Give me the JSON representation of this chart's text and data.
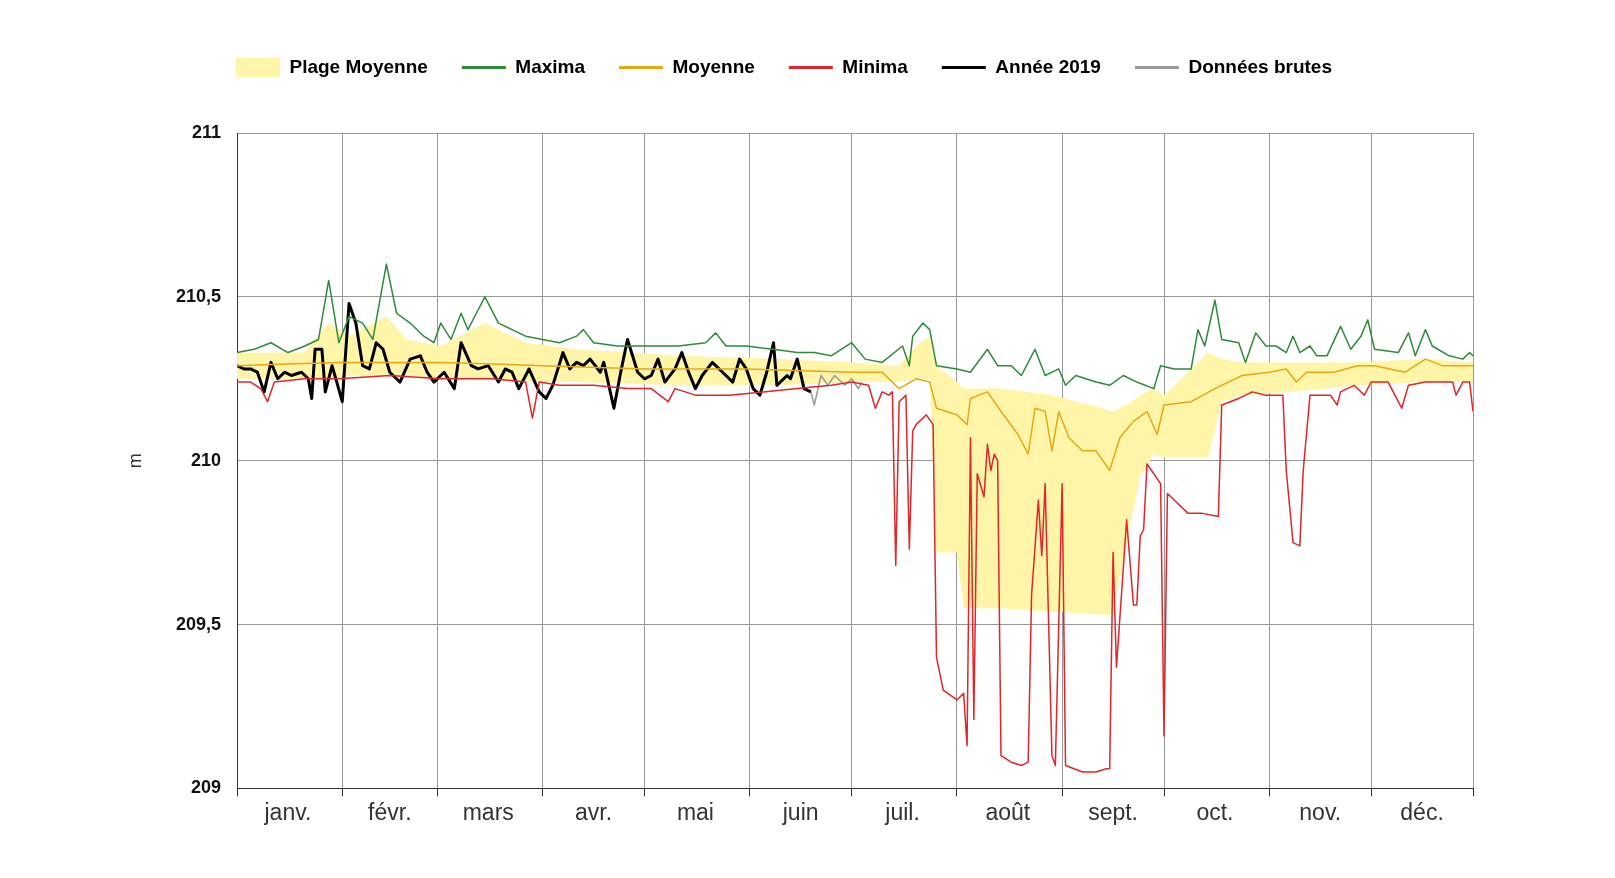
{
  "chart_data": {
    "type": "line",
    "ylabel": "m",
    "xlim": [
      "--01-01",
      "--12-31"
    ],
    "xticks": [
      {
        "value": "--01-01",
        "label": null
      },
      {
        "value": "--01-16",
        "label": "janv."
      },
      {
        "value": "--02-01",
        "label": null
      },
      {
        "value": "--02-15",
        "label": "févr."
      },
      {
        "value": "--03-01",
        "label": null
      },
      {
        "value": "--03-16",
        "label": "mars"
      },
      {
        "value": "--04-01",
        "label": null
      },
      {
        "value": "--04-16",
        "label": "avr."
      },
      {
        "value": "--05-01",
        "label": null
      },
      {
        "value": "--05-16",
        "label": "mai"
      },
      {
        "value": "--06-01",
        "label": null
      },
      {
        "value": "--06-16",
        "label": "juin"
      },
      {
        "value": "--07-01",
        "label": null
      },
      {
        "value": "--07-16",
        "label": "juil."
      },
      {
        "value": "--08-01",
        "label": null
      },
      {
        "value": "--08-16",
        "label": "août"
      },
      {
        "value": "--09-01",
        "label": null
      },
      {
        "value": "--09-16",
        "label": "sept."
      },
      {
        "value": "--10-01",
        "label": null
      },
      {
        "value": "--10-16",
        "label": "oct."
      },
      {
        "value": "--11-01",
        "label": null
      },
      {
        "value": "--11-16",
        "label": "nov."
      },
      {
        "value": "--12-01",
        "label": null
      },
      {
        "value": "--12-16",
        "label": "déc."
      },
      {
        "value": "--12-31",
        "label": null
      }
    ],
    "ylim": [
      209,
      211
    ],
    "yticks": [
      209,
      {
        "value": 209.5,
        "label": "209,5"
      },
      210,
      {
        "value": 210.5,
        "label": "210,5"
      },
      211
    ],
    "grid": true,
    "legend": "top",
    "marker": "none",
    "line_style": "solid",
    "series": [
      {
        "name": "Plage Moyenne",
        "type": "line",
        "color": "#fff5a8",
        "values": [
          null,
          null,
          null,
          null,
          null,
          null,
          null,
          null,
          null,
          null,
          null,
          null,
          null,
          null,
          null,
          null,
          null,
          null,
          null,
          null,
          null,
          null,
          null,
          null,
          null,
          null,
          null,
          null,
          null,
          null,
          null,
          null,
          null,
          null,
          null
        ],
        "x": [
          "--01-01",
          "--01-21",
          "--01-28",
          "--02-03",
          "--02-14",
          "--02-20",
          "--03-02",
          "--03-15",
          "--03-27",
          "--04-11",
          "--05-11",
          "--06-10",
          "--07-01",
          "--07-15",
          "--07-20",
          "--07-24",
          "--07-26",
          "--08-01",
          "--08-03",
          "--08-14",
          "--08-29",
          "--09-13",
          "--09-16",
          "--09-20",
          "--09-24",
          "--09-28",
          "--10-01",
          "--10-09",
          "--10-14",
          "--10-18",
          "--10-24",
          "--11-07",
          "--11-27",
          "--12-17",
          "--12-31"
        ],
        "lower": [
          210.25,
          210.25,
          210.25,
          210.26,
          210.26,
          210.26,
          210.25,
          210.25,
          210.24,
          210.24,
          210.23,
          210.23,
          210.24,
          210.24,
          210.25,
          210.25,
          209.72,
          209.72,
          209.55,
          209.55,
          209.54,
          209.53,
          209.53,
          209.75,
          209.95,
          210.02,
          210.01,
          210.01,
          210.01,
          210.18,
          210.2,
          210.21,
          210.23,
          210.24,
          210.24
        ],
        "upper": [
          210.33,
          210.33,
          210.42,
          210.38,
          210.44,
          210.37,
          210.35,
          210.42,
          210.36,
          210.34,
          210.32,
          210.31,
          210.3,
          210.29,
          210.35,
          210.38,
          210.29,
          210.24,
          210.22,
          210.22,
          210.2,
          210.16,
          210.15,
          210.17,
          210.2,
          210.22,
          210.2,
          210.28,
          210.33,
          210.31,
          210.3,
          210.3,
          210.3,
          210.31,
          210.3
        ]
      },
      {
        "name": "Maxima",
        "color": "#2e8b3a",
        "x": [
          "--01-01",
          "--01-06",
          "--01-11",
          "--01-16",
          "--01-21",
          "--01-25",
          "--01-28",
          "--01-31",
          "--02-03",
          "--02-07",
          "--02-10",
          "--02-14",
          "--02-17",
          "--02-21",
          "--02-25",
          "--02-28",
          "--03-02",
          "--03-05",
          "--03-08",
          "--03-10",
          "--03-12",
          "--03-15",
          "--03-19",
          "--03-23",
          "--03-27",
          "--04-01",
          "--04-06",
          "--04-11",
          "--04-13",
          "--04-16",
          "--04-23",
          "--05-01",
          "--05-11",
          "--05-19",
          "--05-22",
          "--05-25",
          "--05-31",
          "--06-08",
          "--06-15",
          "--06-20",
          "--06-25",
          "--07-01",
          "--07-05",
          "--07-10",
          "--07-16",
          "--07-18",
          "--07-19",
          "--07-22",
          "--07-24",
          "--07-26",
          "--08-01",
          "--08-05",
          "--08-10",
          "--08-13",
          "--08-17",
          "--08-20",
          "--08-24",
          "--08-27",
          "--08-31",
          "--09-02",
          "--09-05",
          "--09-11",
          "--09-15",
          "--09-19",
          "--09-23",
          "--09-28",
          "--09-30",
          "--10-04",
          "--10-09",
          "--10-11",
          "--10-13",
          "--10-16",
          "--10-18",
          "--10-23",
          "--10-25",
          "--10-28",
          "--10-31",
          "--11-03",
          "--11-06",
          "--11-08",
          "--11-10",
          "--11-13",
          "--11-15",
          "--11-18",
          "--11-22",
          "--11-25",
          "--11-28",
          "--11-30",
          "--12-02",
          "--12-09",
          "--12-12",
          "--12-14",
          "--12-17",
          "--12-19",
          "--12-24",
          "--12-28",
          "--12-30",
          "--12-31"
        ],
        "values": [
          210.33,
          210.34,
          210.36,
          210.33,
          210.35,
          210.37,
          210.55,
          210.36,
          210.44,
          210.42,
          210.37,
          210.6,
          210.45,
          210.42,
          210.38,
          210.36,
          210.42,
          210.37,
          210.45,
          210.4,
          210.44,
          210.5,
          210.42,
          210.4,
          210.38,
          210.37,
          210.36,
          210.38,
          210.4,
          210.36,
          210.35,
          210.35,
          210.35,
          210.36,
          210.39,
          210.35,
          210.35,
          210.34,
          210.33,
          210.33,
          210.32,
          210.36,
          210.31,
          210.3,
          210.35,
          210.29,
          210.38,
          210.42,
          210.4,
          210.29,
          210.28,
          210.27,
          210.34,
          210.29,
          210.29,
          210.26,
          210.34,
          210.26,
          210.28,
          210.23,
          210.26,
          210.24,
          210.23,
          210.26,
          210.24,
          210.22,
          210.29,
          210.28,
          210.28,
          210.4,
          210.35,
          210.49,
          210.37,
          210.36,
          210.3,
          210.39,
          210.35,
          210.35,
          210.33,
          210.38,
          210.33,
          210.35,
          210.32,
          210.32,
          210.41,
          210.34,
          210.38,
          210.43,
          210.34,
          210.33,
          210.39,
          210.32,
          210.4,
          210.35,
          210.32,
          210.31,
          210.33,
          210.32
        ]
      },
      {
        "name": "Moyenne",
        "color": "#e6a817",
        "x": [
          "--01-01",
          "--01-31",
          "--03-02",
          "--04-01",
          "--05-01",
          "--05-31",
          "--07-01",
          "--07-10",
          "--07-15",
          "--07-20",
          "--07-24",
          "--07-26",
          "--08-01",
          "--08-04",
          "--08-05",
          "--08-10",
          "--08-14",
          "--08-19",
          "--08-22",
          "--08-24",
          "--08-27",
          "--08-29",
          "--08-31",
          "--09-03",
          "--09-07",
          "--09-11",
          "--09-15",
          "--09-18",
          "--09-22",
          "--09-26",
          "--09-29",
          "--10-01",
          "--10-09",
          "--10-16",
          "--10-24",
          "--11-01",
          "--11-06",
          "--11-09",
          "--11-12",
          "--11-20",
          "--11-27",
          "--12-02",
          "--12-11",
          "--12-17",
          "--12-22",
          "--12-31"
        ],
        "values": [
          210.29,
          210.3,
          210.3,
          210.29,
          210.28,
          210.28,
          210.27,
          210.27,
          210.22,
          210.25,
          210.24,
          210.16,
          210.14,
          210.11,
          210.19,
          210.21,
          210.15,
          210.08,
          210.02,
          210.16,
          210.15,
          210.03,
          210.15,
          210.07,
          210.03,
          210.03,
          209.97,
          210.07,
          210.12,
          210.15,
          210.08,
          210.17,
          210.18,
          210.22,
          210.26,
          210.27,
          210.28,
          210.24,
          210.27,
          210.27,
          210.29,
          210.29,
          210.27,
          210.31,
          210.29,
          210.29
        ]
      },
      {
        "name": "Minima",
        "color": "#e0262a",
        "x": [
          "--01-01",
          "--01-05",
          "--01-08",
          "--01-10",
          "--01-12",
          "--01-21",
          "--01-31",
          "--02-15",
          "--03-02",
          "--03-17",
          "--03-27",
          "--03-29",
          "--03-31",
          "--04-06",
          "--04-16",
          "--04-26",
          "--05-03",
          "--05-08",
          "--05-10",
          "--05-16",
          "--05-26",
          "--06-05",
          "--06-15",
          "--06-25",
          "--07-01",
          "--07-06",
          "--07-08",
          "--07-10",
          "--07-12",
          "--07-13",
          "--07-14",
          "--07-15",
          "--07-16",
          "--07-17",
          "--07-18",
          "--07-19",
          "--07-20",
          "--07-23",
          "--07-25",
          "--07-26",
          "--07-28",
          "--08-01",
          "--08-03",
          "--08-04",
          "--08-05",
          "--08-06",
          "--08-07",
          "--08-09",
          "--08-10",
          "--08-11",
          "--08-12",
          "--08-13",
          "--08-14",
          "--08-17",
          "--08-20",
          "--08-22",
          "--08-23",
          "--08-25",
          "--08-26",
          "--08-27",
          "--08-29",
          "--08-30",
          "--09-01",
          "--09-02",
          "--09-07",
          "--09-11",
          "--09-14",
          "--09-15",
          "--09-16",
          "--09-17",
          "--09-20",
          "--09-22",
          "--09-23",
          "--09-24",
          "--09-25",
          "--09-26",
          "--09-30",
          "--10-01",
          "--10-02",
          "--10-04",
          "--10-08",
          "--10-12",
          "--10-17",
          "--10-18",
          "--10-23",
          "--10-27",
          "--10-31",
          "--11-05",
          "--11-06",
          "--11-08",
          "--11-10",
          "--11-11",
          "--11-13",
          "--11-19",
          "--11-21",
          "--11-22",
          "--11-26",
          "--11-29",
          "--12-01",
          "--12-06",
          "--12-09",
          "--12-10",
          "--12-12",
          "--12-17",
          "--12-25",
          "--12-26",
          "--12-28",
          "--12-30",
          "--12-31"
        ],
        "values": [
          210.24,
          210.24,
          210.22,
          210.18,
          210.24,
          210.25,
          210.25,
          210.26,
          210.25,
          210.25,
          210.24,
          210.13,
          210.24,
          210.23,
          210.23,
          210.22,
          210.22,
          210.18,
          210.22,
          210.2,
          210.2,
          210.21,
          210.22,
          210.23,
          210.24,
          210.23,
          210.16,
          210.21,
          210.2,
          210.21,
          209.68,
          210.18,
          210.19,
          210.2,
          209.73,
          210.09,
          210.11,
          210.14,
          210.11,
          209.4,
          209.3,
          209.27,
          209.29,
          209.13,
          210.07,
          209.21,
          209.96,
          209.89,
          210.05,
          209.97,
          210.02,
          210.0,
          209.1,
          209.08,
          209.07,
          209.08,
          209.59,
          209.88,
          209.71,
          209.93,
          209.1,
          209.07,
          209.93,
          209.07,
          209.05,
          209.05,
          209.06,
          209.06,
          209.72,
          209.37,
          209.82,
          209.56,
          209.56,
          209.77,
          209.79,
          209.99,
          209.93,
          209.16,
          209.9,
          209.88,
          209.84,
          209.84,
          209.83,
          210.17,
          210.19,
          210.21,
          210.2,
          210.2,
          209.97,
          209.75,
          209.74,
          209.97,
          210.2,
          210.2,
          210.17,
          210.21,
          210.23,
          210.2,
          210.24,
          210.24,
          210.18,
          210.16,
          210.23,
          210.24,
          210.24,
          210.2,
          210.24,
          210.24,
          210.15
        ]
      },
      {
        "name": "Année 2019",
        "color": "#000000",
        "x": [
          "--01-01",
          "--01-03",
          "--01-05",
          "--01-07",
          "--01-09",
          "--01-11",
          "--01-13",
          "--01-15",
          "--01-17",
          "--01-20",
          "--01-22",
          "--01-23",
          "--01-24",
          "--01-26",
          "--01-27",
          "--01-29",
          "--02-01",
          "--02-03",
          "--02-05",
          "--02-07",
          "--02-09",
          "--02-11",
          "--02-13",
          "--02-15",
          "--02-18",
          "--02-21",
          "--02-24",
          "--02-26",
          "--02-28",
          "--03-03",
          "--03-06",
          "--03-08",
          "--03-11",
          "--03-13",
          "--03-16",
          "--03-19",
          "--03-21",
          "--03-23",
          "--03-25",
          "--03-28",
          "--03-31",
          "--04-02",
          "--04-04",
          "--04-07",
          "--04-09",
          "--04-11",
          "--04-13",
          "--04-15",
          "--04-18",
          "--04-19",
          "--04-22",
          "--04-24",
          "--04-26",
          "--04-29",
          "--05-01",
          "--05-03",
          "--05-05",
          "--05-07",
          "--05-10",
          "--05-12",
          "--05-14",
          "--05-16",
          "--05-18",
          "--05-21",
          "--05-24",
          "--05-27",
          "--05-29",
          "--05-31",
          "--06-02",
          "--06-04",
          "--06-06",
          "--06-08",
          "--06-09",
          "--06-12",
          "--06-13",
          "--06-15",
          "--06-17",
          "--06-19"
        ],
        "values": [
          210.29,
          210.28,
          210.28,
          210.27,
          210.21,
          210.3,
          210.25,
          210.27,
          210.26,
          210.27,
          210.25,
          210.19,
          210.34,
          210.34,
          210.21,
          210.29,
          210.18,
          210.48,
          210.42,
          210.29,
          210.28,
          210.36,
          210.34,
          210.27,
          210.24,
          210.31,
          210.32,
          210.27,
          210.24,
          210.27,
          210.22,
          210.36,
          210.29,
          210.28,
          210.29,
          210.24,
          210.28,
          210.27,
          210.22,
          210.28,
          210.21,
          210.19,
          210.23,
          210.33,
          210.28,
          210.3,
          210.29,
          210.31,
          210.27,
          210.3,
          210.16,
          210.27,
          210.37,
          210.27,
          210.25,
          210.26,
          210.31,
          210.24,
          210.28,
          210.33,
          210.27,
          210.22,
          210.26,
          210.3,
          210.27,
          210.24,
          210.31,
          210.28,
          210.22,
          210.2,
          210.27,
          210.36,
          210.23,
          210.26,
          210.25,
          210.31,
          210.22,
          210.21
        ]
      },
      {
        "name": "Données brutes",
        "color": "#999999",
        "x": [
          "--06-19",
          "--06-20",
          "--06-22",
          "--06-24",
          "--06-26",
          "--06-29",
          "--07-01",
          "--07-03",
          "--07-04"
        ],
        "values": [
          210.21,
          210.17,
          210.26,
          210.23,
          210.26,
          210.23,
          210.25,
          210.22,
          210.24
        ]
      }
    ]
  }
}
